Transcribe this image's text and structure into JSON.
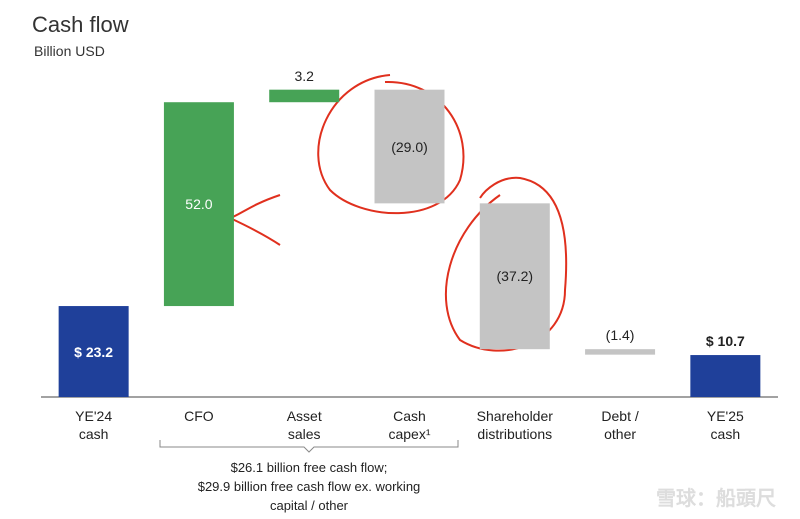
{
  "chart_data": {
    "type": "waterfall",
    "title": "Cash flow",
    "subtitle": "Billion USD",
    "categories": [
      "YE'24\ncash",
      "CFO",
      "Asset\nsales",
      "Cash\ncapex¹",
      "Shareholder\ndistributions",
      "Debt /\nother",
      "YE'25\ncash"
    ],
    "values": [
      23.2,
      52.0,
      3.2,
      -29.0,
      -37.2,
      -1.4,
      10.7
    ],
    "value_labels": [
      "$ 23.2",
      "52.0",
      "3.2",
      "(29.0)",
      "(37.2)",
      "(1.4)",
      "$ 10.7"
    ],
    "measure": [
      "absolute",
      "relative",
      "relative",
      "relative",
      "relative",
      "relative",
      "absolute"
    ],
    "colors": [
      "#1f409a",
      "#47a356",
      "#47a356",
      "#c4c4c4",
      "#c4c4c4",
      "#c4c4c4",
      "#1f409a"
    ],
    "ylim": [
      0,
      80
    ],
    "annotation": "$26.1 billion free cash flow;\n$29.9 billion free cash flow ex. working\ncapital / other",
    "watermark": "雪球：船頭尺"
  }
}
